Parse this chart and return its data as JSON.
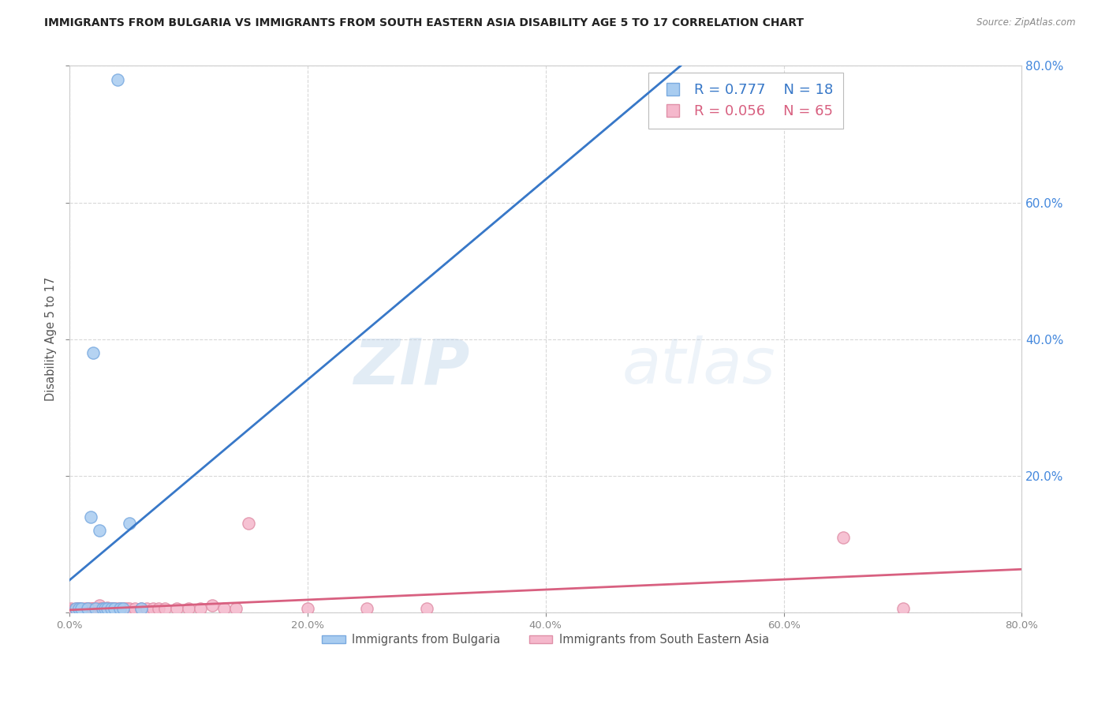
{
  "title": "IMMIGRANTS FROM BULGARIA VS IMMIGRANTS FROM SOUTH EASTERN ASIA DISABILITY AGE 5 TO 17 CORRELATION CHART",
  "source": "Source: ZipAtlas.com",
  "ylabel": "Disability Age 5 to 17",
  "legend_entries": [
    {
      "label": "Immigrants from Bulgaria",
      "R": "0.777",
      "N": "18",
      "color": "#7ab8f5"
    },
    {
      "label": "Immigrants from South Eastern Asia",
      "R": "0.056",
      "N": "65",
      "color": "#f5a0b8"
    }
  ],
  "watermark_zip": "ZIP",
  "watermark_atlas": "atlas",
  "bulgaria_scatter_x": [
    0.005,
    0.008,
    0.01,
    0.015,
    0.018,
    0.02,
    0.022,
    0.025,
    0.028,
    0.03,
    0.032,
    0.035,
    0.038,
    0.04,
    0.042,
    0.045,
    0.05,
    0.06
  ],
  "bulgaria_scatter_y": [
    0.005,
    0.005,
    0.005,
    0.005,
    0.14,
    0.38,
    0.005,
    0.12,
    0.005,
    0.005,
    0.005,
    0.005,
    0.005,
    0.78,
    0.005,
    0.005,
    0.13,
    0.005
  ],
  "sea_scatter_x": [
    0.0,
    0.001,
    0.002,
    0.003,
    0.004,
    0.005,
    0.005,
    0.006,
    0.007,
    0.007,
    0.008,
    0.009,
    0.01,
    0.011,
    0.012,
    0.013,
    0.014,
    0.015,
    0.016,
    0.017,
    0.018,
    0.019,
    0.02,
    0.021,
    0.022,
    0.023,
    0.024,
    0.025,
    0.026,
    0.027,
    0.028,
    0.029,
    0.03,
    0.031,
    0.032,
    0.033,
    0.034,
    0.035,
    0.036,
    0.037,
    0.038,
    0.04,
    0.042,
    0.044,
    0.046,
    0.048,
    0.05,
    0.055,
    0.06,
    0.065,
    0.07,
    0.075,
    0.08,
    0.09,
    0.1,
    0.11,
    0.12,
    0.13,
    0.14,
    0.15,
    0.2,
    0.25,
    0.3,
    0.65,
    0.7
  ],
  "sea_scatter_y": [
    0.0,
    0.005,
    0.003,
    0.004,
    0.003,
    0.004,
    0.005,
    0.004,
    0.005,
    0.006,
    0.005,
    0.004,
    0.005,
    0.003,
    0.004,
    0.005,
    0.004,
    0.005,
    0.005,
    0.004,
    0.005,
    0.005,
    0.005,
    0.005,
    0.005,
    0.005,
    0.005,
    0.01,
    0.005,
    0.005,
    0.005,
    0.005,
    0.005,
    0.005,
    0.007,
    0.005,
    0.005,
    0.005,
    0.005,
    0.005,
    0.005,
    0.005,
    0.005,
    0.005,
    0.005,
    0.005,
    0.005,
    0.005,
    0.005,
    0.005,
    0.005,
    0.005,
    0.005,
    0.005,
    0.005,
    0.005,
    0.01,
    0.005,
    0.005,
    0.13,
    0.005,
    0.005,
    0.005,
    0.11,
    0.005
  ],
  "xlim": [
    0.0,
    0.8
  ],
  "ylim": [
    0.0,
    0.8
  ],
  "bg_color": "#ffffff",
  "grid_color": "#d8d8d8",
  "bulgaria_line_color": "#3878c8",
  "sea_line_color": "#d86080",
  "scatter_bulgaria_color": "#a8ccf0",
  "scatter_sea_color": "#f5b8cc",
  "scatter_bulgaria_edge": "#7aaae0",
  "scatter_sea_edge": "#e090a8",
  "title_color": "#222222",
  "axis_label_color": "#555555",
  "right_label_color": "#4488dd",
  "tick_color": "#888888",
  "source_color": "#888888",
  "right_ytick_vals": [
    0.0,
    0.2,
    0.4,
    0.6,
    0.8
  ],
  "right_ytick_labels": [
    "",
    "20.0%",
    "40.0%",
    "60.0%",
    "80.0%"
  ]
}
